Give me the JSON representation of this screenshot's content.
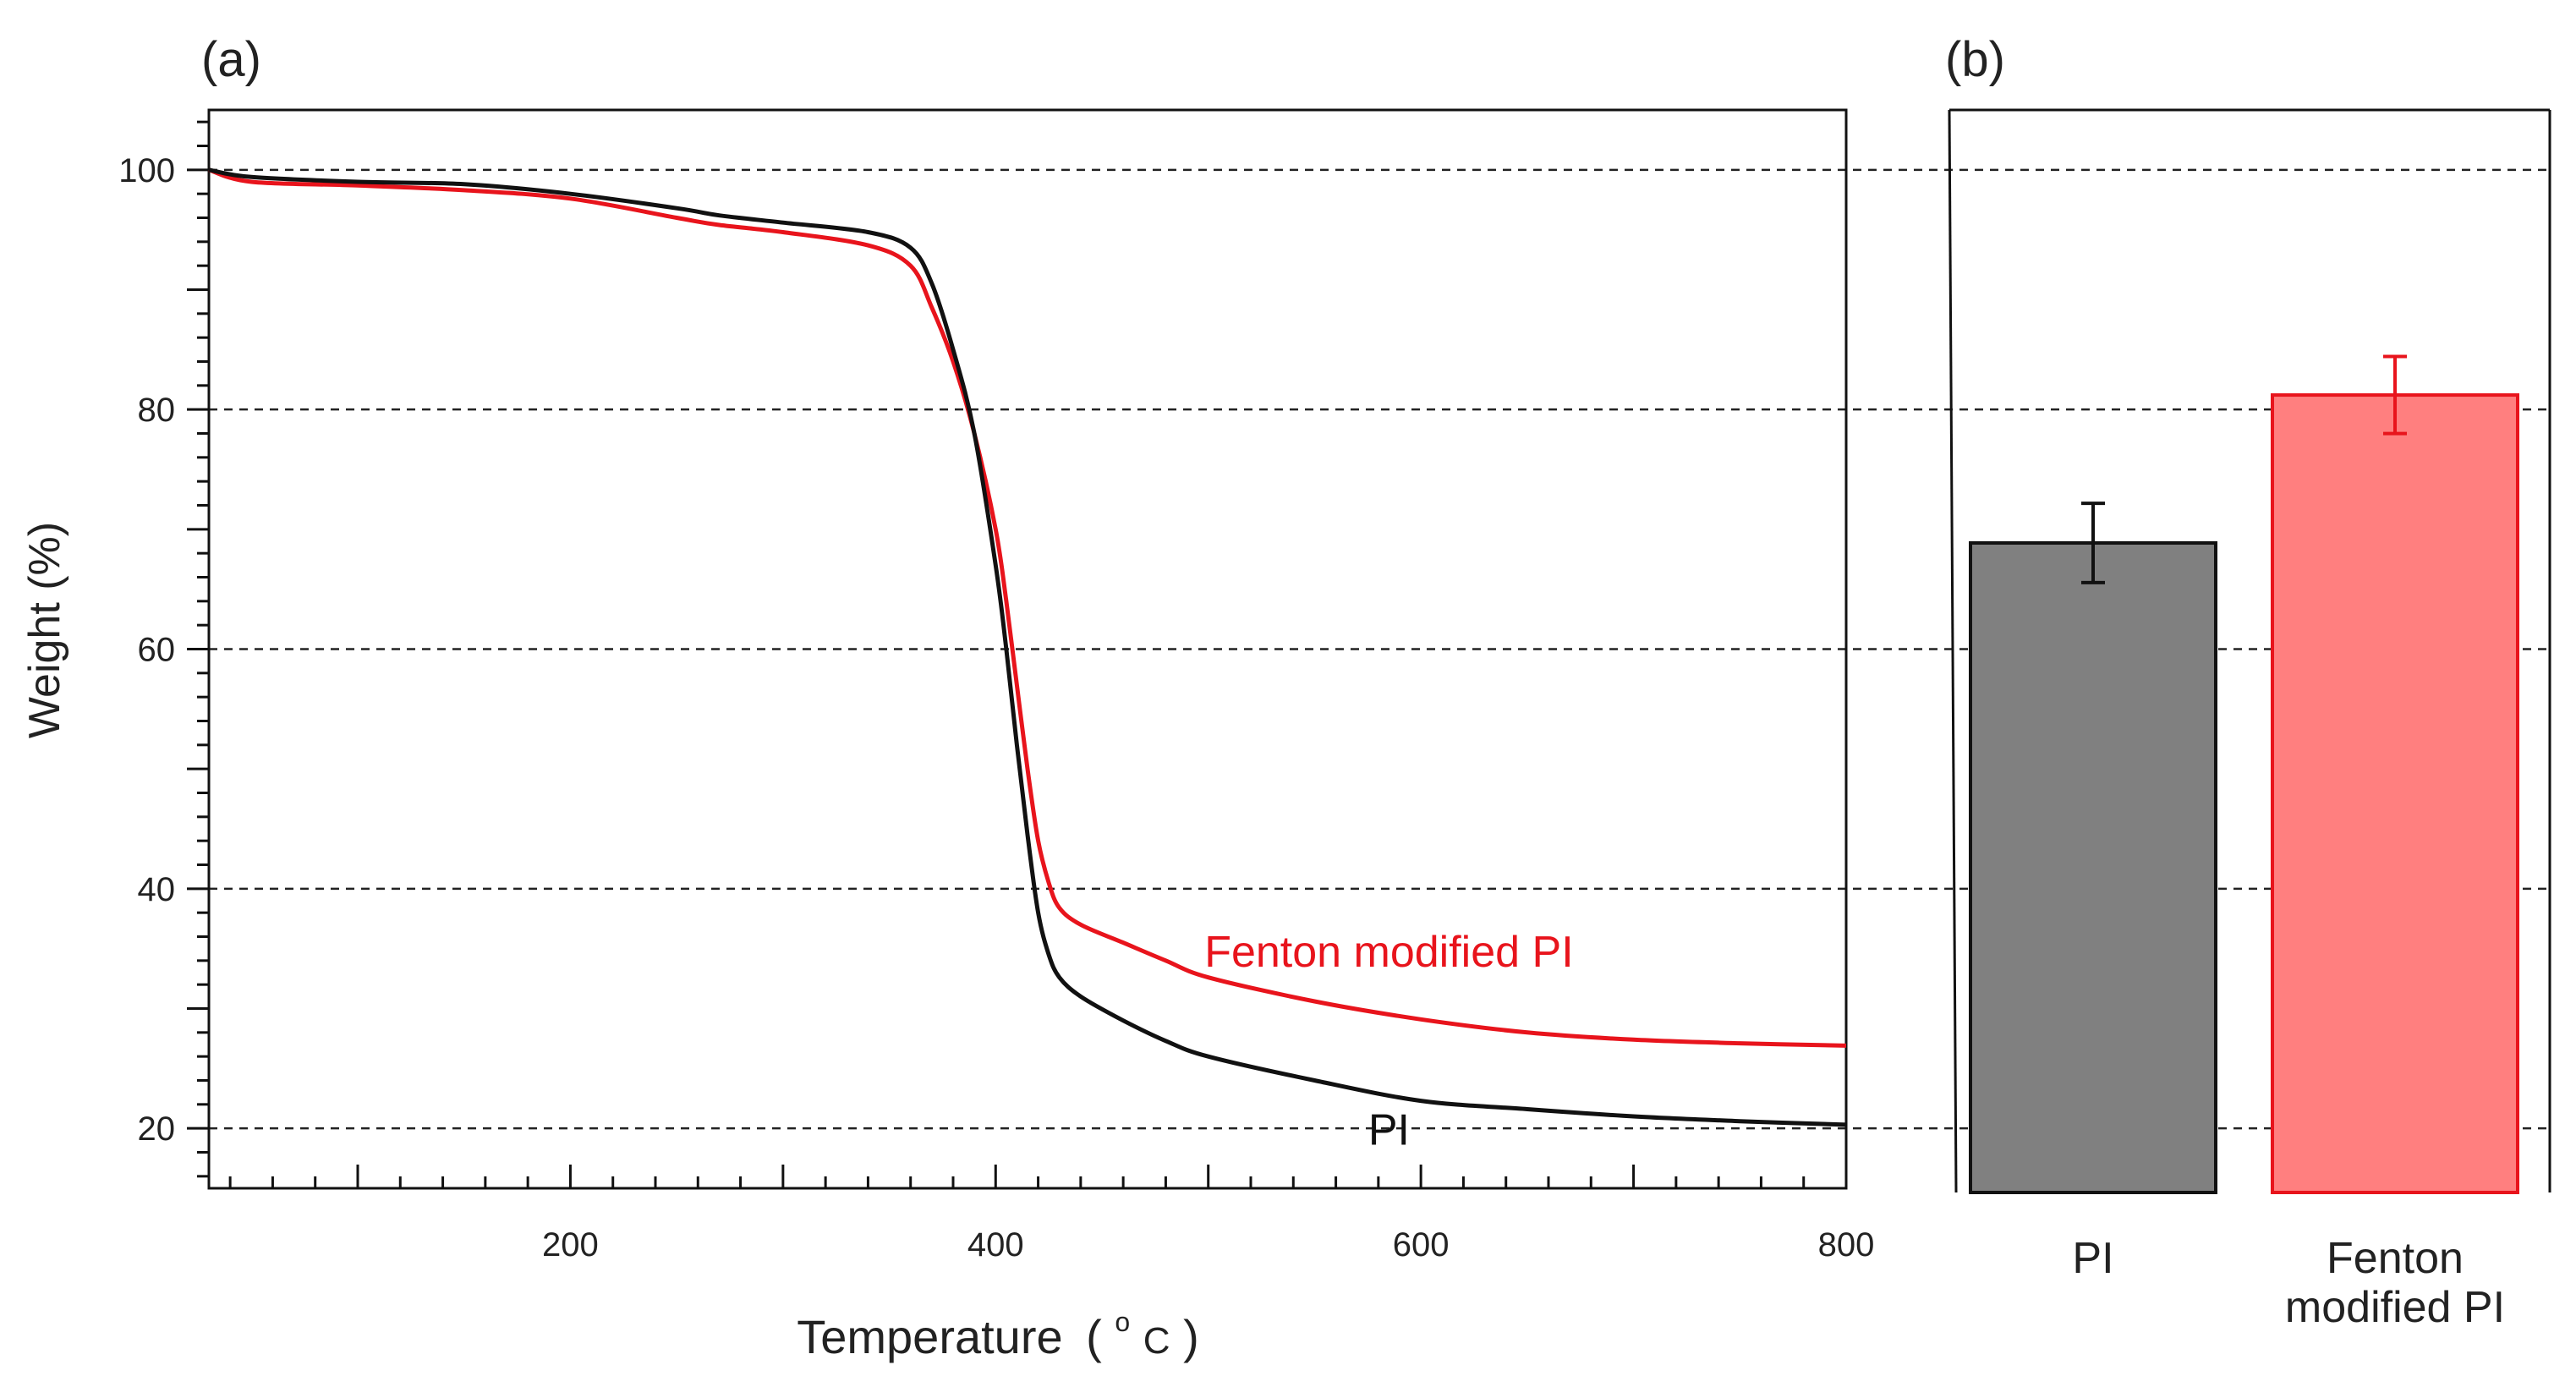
{
  "chart_data": [
    {
      "panel_label": "(a)",
      "type": "line",
      "xlabel": "Temperature",
      "xlabel_unit_degree": "o",
      "xlabel_unit_c": "C",
      "xlabel_paren_open": "(",
      "xlabel_paren_close": ")",
      "ylabel": "Weight (%)",
      "xlim": [
        30,
        800
      ],
      "ylim": [
        15,
        105
      ],
      "xticks": [
        200,
        400,
        600,
        800
      ],
      "yticks": [
        20,
        40,
        60,
        80,
        100
      ],
      "grid": "horizontal dashed",
      "series": [
        {
          "name": "PI",
          "color": "#111111",
          "x": [
            30,
            50,
            100,
            150,
            200,
            250,
            270,
            300,
            340,
            360,
            370,
            380,
            390,
            400,
            405,
            410,
            415,
            420,
            425,
            430,
            440,
            460,
            480,
            500,
            550,
            600,
            650,
            700,
            750,
            800
          ],
          "y": [
            100,
            99.4,
            99.0,
            98.8,
            98.0,
            96.8,
            96.2,
            95.6,
            94.8,
            93.5,
            90.5,
            85,
            78,
            67,
            60,
            52,
            44.5,
            38,
            34.5,
            32.6,
            31,
            29,
            27.3,
            26,
            24,
            22.3,
            21.6,
            21.0,
            20.6,
            20.3
          ]
        },
        {
          "name": "Fenton modified PI",
          "color": "#e8141c",
          "x": [
            30,
            50,
            100,
            150,
            200,
            250,
            270,
            300,
            340,
            360,
            370,
            380,
            390,
            400,
            405,
            410,
            415,
            420,
            425,
            430,
            440,
            460,
            480,
            500,
            550,
            600,
            650,
            700,
            750,
            800
          ],
          "y": [
            100,
            99.0,
            98.7,
            98.3,
            97.6,
            96.0,
            95.4,
            94.8,
            93.7,
            92.0,
            88.5,
            84,
            78,
            70,
            64,
            57,
            50,
            44,
            40.5,
            38.4,
            37.0,
            35.5,
            34.0,
            32.6,
            30.6,
            29.1,
            28.0,
            27.4,
            27.1,
            26.9
          ]
        }
      ],
      "annotations": [
        {
          "text": "Fenton modified PI",
          "series": "Fenton modified PI",
          "x": 585,
          "y": 33.5
        },
        {
          "text": "PI",
          "series": "PI",
          "x": 585,
          "y": 19.5
        }
      ]
    },
    {
      "panel_label": "(b)",
      "type": "bar",
      "ylim": [
        15,
        105
      ],
      "gridlines": [
        20,
        40,
        60,
        80,
        100
      ],
      "categories": [
        "PI",
        "Fenton\nmodified PI"
      ],
      "values": [
        69.0,
        81.3
      ],
      "errors": [
        3.3,
        3.2
      ],
      "colors": [
        "#808080",
        "#ff7f7f"
      ],
      "edge_colors": [
        "#111111",
        "#e8141c"
      ]
    }
  ]
}
